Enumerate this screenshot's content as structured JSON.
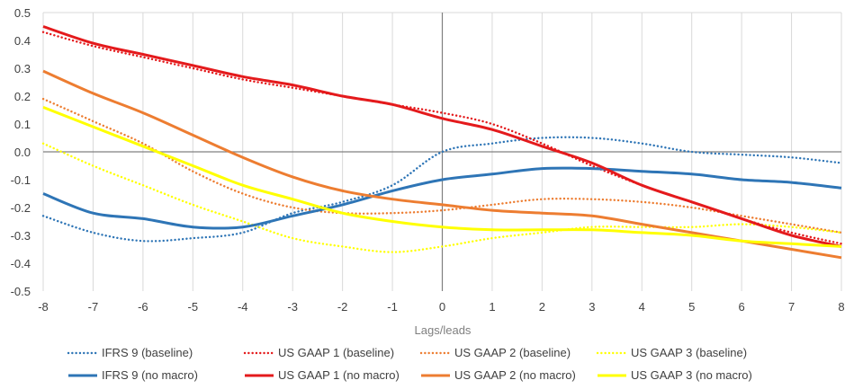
{
  "chart_data": {
    "type": "line",
    "xlabel": "Lags/leads",
    "ylabel": "",
    "xlim": [
      -8,
      8
    ],
    "ylim": [
      -0.5,
      0.5
    ],
    "x": [
      -8,
      -7,
      -6,
      -5,
      -4,
      -3,
      -2,
      -1,
      0,
      1,
      2,
      3,
      4,
      5,
      6,
      7,
      8
    ],
    "xticks": [
      "-8",
      "-7",
      "-6",
      "-5",
      "-4",
      "-3",
      "-2",
      "-1",
      "0",
      "1",
      "2",
      "3",
      "4",
      "5",
      "6",
      "7",
      "8"
    ],
    "yticks": [
      0.5,
      0.4,
      0.3,
      0.2,
      0.1,
      0.0,
      -0.1,
      -0.2,
      -0.3,
      -0.4,
      -0.5
    ],
    "ytick_labels": [
      "0.5",
      "0.4",
      "0.3",
      "0.2",
      "0.1",
      "0.0",
      "-0.1",
      "-0.2",
      "-0.3",
      "-0.4",
      "-0.5"
    ],
    "grid": "vertical",
    "legend_position": "bottom",
    "series": [
      {
        "name": "IFRS 9 (baseline)",
        "color": "#2e75b6",
        "style": "dotted",
        "values": [
          -0.23,
          -0.29,
          -0.32,
          -0.31,
          -0.29,
          -0.22,
          -0.18,
          -0.12,
          0.0,
          0.03,
          0.05,
          0.05,
          0.03,
          0.0,
          -0.01,
          -0.02,
          -0.04
        ]
      },
      {
        "name": "US GAAP 1 (baseline)",
        "color": "#e41a1c",
        "style": "dotted",
        "values": [
          0.43,
          0.38,
          0.34,
          0.3,
          0.26,
          0.23,
          0.2,
          0.17,
          0.14,
          0.1,
          0.03,
          -0.05,
          -0.12,
          -0.18,
          -0.24,
          -0.29,
          -0.33
        ]
      },
      {
        "name": "US GAAP 2 (baseline)",
        "color": "#ed7d31",
        "style": "dotted",
        "values": [
          0.19,
          0.11,
          0.03,
          -0.07,
          -0.15,
          -0.2,
          -0.22,
          -0.22,
          -0.21,
          -0.19,
          -0.17,
          -0.17,
          -0.18,
          -0.2,
          -0.23,
          -0.26,
          -0.29
        ]
      },
      {
        "name": "US GAAP 3 (baseline)",
        "color": "#ffff00",
        "style": "dotted",
        "values": [
          0.03,
          -0.05,
          -0.12,
          -0.19,
          -0.25,
          -0.31,
          -0.34,
          -0.36,
          -0.34,
          -0.31,
          -0.29,
          -0.27,
          -0.27,
          -0.27,
          -0.26,
          -0.27,
          -0.29
        ]
      },
      {
        "name": "IFRS 9 (no macro)",
        "color": "#2e75b6",
        "style": "solid",
        "values": [
          -0.15,
          -0.22,
          -0.24,
          -0.27,
          -0.27,
          -0.23,
          -0.19,
          -0.14,
          -0.1,
          -0.08,
          -0.06,
          -0.06,
          -0.07,
          -0.08,
          -0.1,
          -0.11,
          -0.13
        ]
      },
      {
        "name": "US GAAP 1 (no macro)",
        "color": "#e41a1c",
        "style": "solid",
        "values": [
          0.45,
          0.39,
          0.35,
          0.31,
          0.27,
          0.24,
          0.2,
          0.17,
          0.12,
          0.08,
          0.02,
          -0.04,
          -0.12,
          -0.18,
          -0.24,
          -0.3,
          -0.34
        ]
      },
      {
        "name": "US GAAP 2 (no macro)",
        "color": "#ed7d31",
        "style": "solid",
        "values": [
          0.29,
          0.21,
          0.14,
          0.06,
          -0.02,
          -0.09,
          -0.14,
          -0.17,
          -0.19,
          -0.21,
          -0.22,
          -0.23,
          -0.26,
          -0.29,
          -0.32,
          -0.35,
          -0.38
        ]
      },
      {
        "name": "US GAAP 3 (no macro)",
        "color": "#ffff00",
        "style": "solid",
        "values": [
          0.16,
          0.09,
          0.02,
          -0.05,
          -0.12,
          -0.17,
          -0.22,
          -0.25,
          -0.27,
          -0.28,
          -0.28,
          -0.28,
          -0.29,
          -0.3,
          -0.32,
          -0.33,
          -0.34
        ]
      }
    ]
  }
}
